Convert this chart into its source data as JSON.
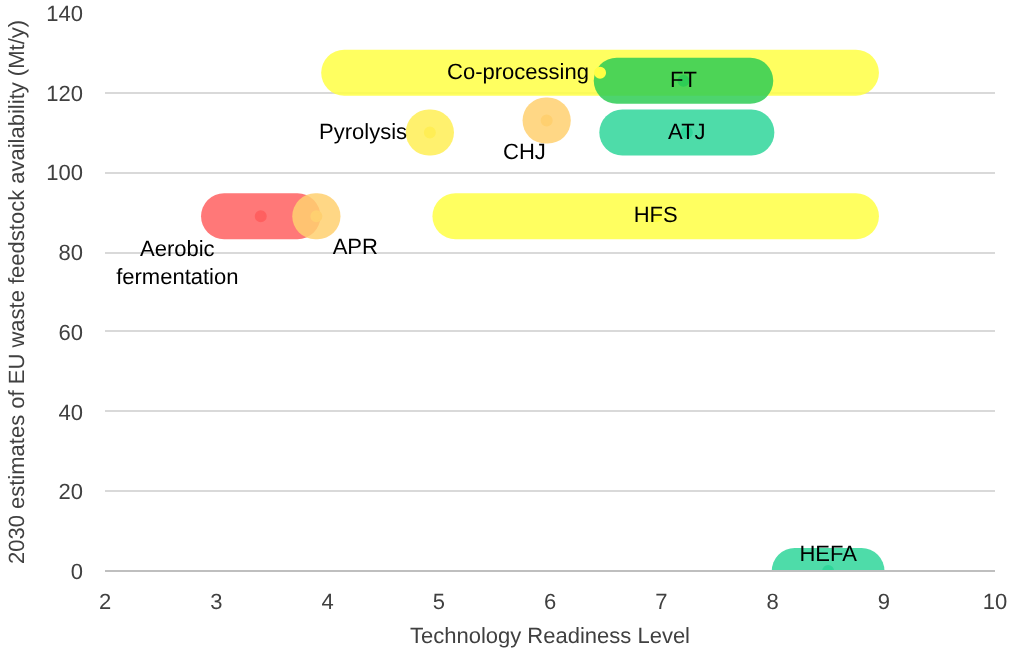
{
  "chart_data": {
    "type": "scatter",
    "xlabel": "Technology Readiness Level",
    "ylabel": "2030 estimates of EU waste feedstock availability (Mt/y)",
    "xlim": [
      2,
      10
    ],
    "ylim": [
      0,
      140
    ],
    "xticks": [
      2,
      3,
      4,
      5,
      6,
      7,
      8,
      9,
      10
    ],
    "yticks": [
      0,
      20,
      40,
      60,
      80,
      100,
      120,
      140
    ],
    "grid": "y",
    "series": [
      {
        "name": "Co-processing",
        "color": "#ffff44",
        "x": [
          6.45
        ],
        "values": [
          125
        ],
        "xerrors": [
          2.3
        ]
      },
      {
        "name": "FT",
        "color": "#2ecc55",
        "x": [
          7.2
        ],
        "values": [
          123
        ],
        "xerrors": [
          0.6
        ]
      },
      {
        "name": "ATJ",
        "color": "#2fd69a",
        "x": [
          7.23
        ],
        "values": [
          110
        ],
        "xerrors": [
          0.58
        ]
      },
      {
        "name": "Pyrolysis",
        "color": "#ffee55",
        "x": [
          4.92
        ],
        "values": [
          110
        ],
        "xerrors": [
          0.01
        ]
      },
      {
        "name": "CHJ",
        "color": "#ffd070",
        "x": [
          5.97
        ],
        "values": [
          113
        ],
        "xerrors": [
          0.01
        ]
      },
      {
        "name": "HFS",
        "color": "#ffff44",
        "x": [
          6.95
        ],
        "values": [
          89
        ],
        "xerrors": [
          1.8
        ]
      },
      {
        "name": "Aerobic fermentation",
        "color": "#ff6060",
        "x": [
          3.4
        ],
        "values": [
          89
        ],
        "xerrors": [
          0.33
        ]
      },
      {
        "name": "APR",
        "color": "#ffd070",
        "x": [
          3.9
        ],
        "values": [
          89
        ],
        "xerrors": [
          0.01
        ]
      },
      {
        "name": "HEFA",
        "color": "#2fd69a",
        "x": [
          8.5
        ],
        "values": [
          0
        ],
        "xerrors": [
          0.3
        ]
      }
    ]
  }
}
